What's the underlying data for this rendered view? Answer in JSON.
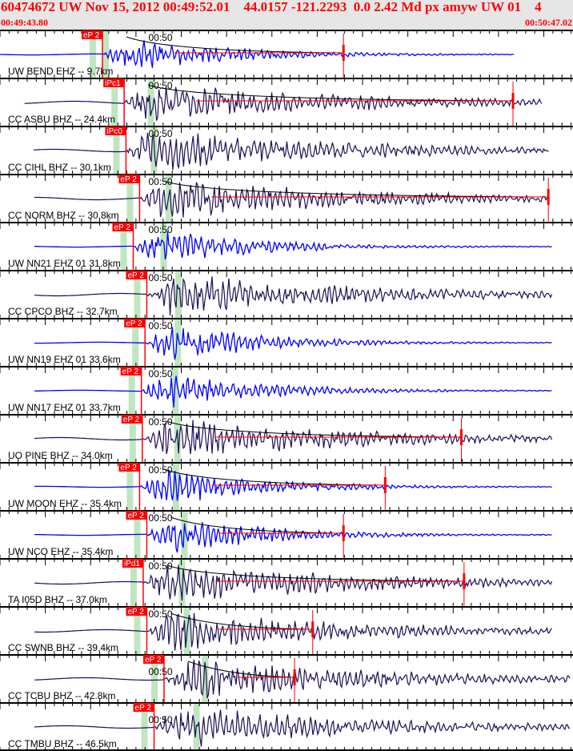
{
  "header": {
    "title": "60474672 UW Nov 15, 2012 00:49:52.01    44.0157 -121.2293  0.0 2.42 Md px amyw UW 01    4",
    "window_start": "00:49:43.80",
    "window_end": "00:50:47.02",
    "minute_mark": "00:50"
  },
  "colors": {
    "header_text": "#ff0000",
    "header_bg": "#e6e6e6",
    "uw_trace": "#0000ff",
    "other_trace": "#1e0f55",
    "pick": "#ff0000",
    "window_bar": "#bfe6bf",
    "coda": "#000000"
  },
  "chart_data": {
    "type": "line",
    "title": "60474672 UW Nov 15, 2012 00:49:52.01    44.0157 -121.2293  0.0 2.42 Md px amyw UW 01    4",
    "xlim": [
      "00:49:43.80",
      "00:50:47.02"
    ],
    "traces": [
      {
        "label": "UW BEND EHZ -- 9.7km",
        "phase": "eP 2",
        "pick": "00:49:55.1",
        "coda_end": "00:50:21.7",
        "color": "uw_trace",
        "start": "00:49:43.8",
        "end": "00:50:40.5"
      },
      {
        "label": "CC ASBU BHZ -- 24.4km",
        "phase": "iPc1",
        "pick": "00:49:57.5",
        "coda_end": "00:50:40.4",
        "color": "other_trace",
        "start": "00:49:46.5",
        "end": "00:50:43.6"
      },
      {
        "label": "CC CIHL BHZ -- 30.1km",
        "phase": "iPc0",
        "pick": "00:49:57.7",
        "coda_end": null,
        "color": "other_trace",
        "start": "00:49:47.5",
        "end": "00:50:44.4"
      },
      {
        "label": "CC NORM BHZ -- 30.8km",
        "phase": "eP 2",
        "pick": "00:49:59.2",
        "coda_end": "00:50:44.3",
        "color": "other_trace",
        "start": "00:49:47.6",
        "end": "00:50:44.4"
      },
      {
        "label": "UW NN21 EHZ 01 31.8km",
        "phase": "eP 2",
        "pick": "00:49:58.5",
        "coda_end": null,
        "color": "uw_trace",
        "start": "00:49:47.6",
        "end": "00:50:44.7"
      },
      {
        "label": "CC CPCO BHZ -- 32.7km",
        "phase": "eP 2",
        "pick": "00:50:00.0",
        "coda_end": null,
        "color": "other_trace",
        "start": "00:49:47.6",
        "end": "00:50:44.7"
      },
      {
        "label": "UW NN19 EHZ 01 33.6km",
        "phase": "eP 2",
        "pick": "00:49:59.8",
        "coda_end": null,
        "color": "uw_trace",
        "start": "00:49:47.6",
        "end": "00:50:44.7"
      },
      {
        "label": "UW NN17 EHZ 01 33.7km",
        "phase": "eP 2",
        "pick": "00:49:59.4",
        "coda_end": null,
        "color": "uw_trace",
        "start": "00:49:47.6",
        "end": "00:50:44.7"
      },
      {
        "label": "UO PINE BHZ -- 34.0km",
        "phase": "eP 2",
        "pick": "00:49:59.5",
        "coda_end": "00:50:34.7",
        "color": "other_trace",
        "start": "00:49:47.6",
        "end": "00:50:44.7"
      },
      {
        "label": "UW MOON EHZ -- 35.4km",
        "phase": "eP 2",
        "pick": "00:49:59.2",
        "coda_end": "00:50:26.3",
        "color": "uw_trace",
        "start": "00:49:47.6",
        "end": "00:50:44.7"
      },
      {
        "label": "UW NCO EHZ -- 35.4km",
        "phase": "eP 2",
        "pick": "00:50:00.0",
        "coda_end": "00:50:21.7",
        "color": "uw_trace",
        "start": "00:49:47.6",
        "end": "00:50:44.7"
      },
      {
        "label": "TA I05D BHZ -- 37.0km",
        "phase": "iPd1",
        "pick": "00:49:59.6",
        "coda_end": "00:50:35.0",
        "color": "other_trace",
        "start": "00:49:47.6",
        "end": "00:50:44.7"
      },
      {
        "label": "CC SWNB BHZ -- 39.4km",
        "phase": "eP 2",
        "pick": "00:50:00.0",
        "coda_end": "00:50:18.3",
        "color": "other_trace",
        "start": "00:49:47.6",
        "end": "00:50:44.7"
      },
      {
        "label": "CC TCBU BHZ -- 42.8km",
        "phase": "eP 2",
        "pick": "00:50:01.9",
        "coda_end": "00:50:16.3",
        "color": "other_trace",
        "start": "00:49:47.6",
        "end": "00:50:46.8"
      },
      {
        "label": "CC TMBU BHZ -- 46.5km",
        "phase": "eP 2",
        "pick": "00:50:00.8",
        "coda_end": null,
        "color": "other_trace",
        "start": "00:49:47.6",
        "end": "00:50:46.8"
      }
    ]
  }
}
